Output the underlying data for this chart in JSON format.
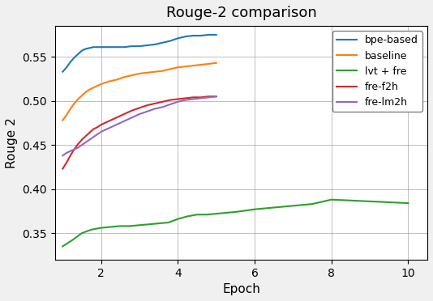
{
  "title": "Rouge-2 comparison",
  "xlabel": "Epoch",
  "ylabel": "Rouge 2",
  "series": {
    "bpe-based": {
      "color": "#1f77b4",
      "x": [
        1.0,
        1.1,
        1.2,
        1.3,
        1.4,
        1.5,
        1.6,
        1.7,
        1.8,
        1.9,
        2.0,
        2.2,
        2.4,
        2.6,
        2.8,
        3.0,
        3.2,
        3.4,
        3.6,
        3.8,
        4.0,
        4.2,
        4.4,
        4.6,
        4.8,
        5.0
      ],
      "y": [
        0.533,
        0.538,
        0.544,
        0.549,
        0.553,
        0.557,
        0.559,
        0.56,
        0.561,
        0.561,
        0.561,
        0.561,
        0.561,
        0.561,
        0.562,
        0.562,
        0.563,
        0.564,
        0.566,
        0.568,
        0.571,
        0.573,
        0.574,
        0.574,
        0.575,
        0.575
      ]
    },
    "baseline": {
      "color": "#ff7f0e",
      "x": [
        1.0,
        1.1,
        1.2,
        1.3,
        1.4,
        1.5,
        1.6,
        1.7,
        1.8,
        1.9,
        2.0,
        2.2,
        2.4,
        2.6,
        2.8,
        3.0,
        3.2,
        3.4,
        3.6,
        3.8,
        4.0,
        4.2,
        4.4,
        4.6,
        4.8,
        5.0
      ],
      "y": [
        0.478,
        0.484,
        0.491,
        0.497,
        0.502,
        0.506,
        0.51,
        0.513,
        0.515,
        0.517,
        0.519,
        0.522,
        0.524,
        0.527,
        0.529,
        0.531,
        0.532,
        0.533,
        0.534,
        0.536,
        0.538,
        0.539,
        0.54,
        0.541,
        0.542,
        0.543
      ]
    },
    "lvt + fre": {
      "color": "#2ca02c",
      "x": [
        1.0,
        1.25,
        1.5,
        1.75,
        2.0,
        2.25,
        2.5,
        2.75,
        3.0,
        3.25,
        3.5,
        3.75,
        4.0,
        4.25,
        4.5,
        4.75,
        5.0,
        5.5,
        6.0,
        6.5,
        7.0,
        7.5,
        8.0,
        8.5,
        9.0,
        9.5,
        10.0
      ],
      "y": [
        0.335,
        0.342,
        0.35,
        0.354,
        0.356,
        0.357,
        0.358,
        0.358,
        0.359,
        0.36,
        0.361,
        0.362,
        0.366,
        0.369,
        0.371,
        0.371,
        0.372,
        0.374,
        0.377,
        0.379,
        0.381,
        0.383,
        0.388,
        0.387,
        0.386,
        0.385,
        0.384
      ]
    },
    "fre-f2h": {
      "color": "#d62728",
      "x": [
        1.0,
        1.1,
        1.2,
        1.3,
        1.4,
        1.5,
        1.6,
        1.7,
        1.8,
        1.9,
        2.0,
        2.2,
        2.4,
        2.6,
        2.8,
        3.0,
        3.2,
        3.4,
        3.6,
        3.8,
        4.0,
        4.2,
        4.4,
        4.6,
        4.8,
        5.0
      ],
      "y": [
        0.423,
        0.43,
        0.438,
        0.445,
        0.451,
        0.456,
        0.46,
        0.464,
        0.468,
        0.47,
        0.473,
        0.477,
        0.481,
        0.485,
        0.489,
        0.492,
        0.495,
        0.497,
        0.499,
        0.501,
        0.502,
        0.503,
        0.504,
        0.504,
        0.505,
        0.505
      ]
    },
    "fre-lm2h": {
      "color": "#9467bd",
      "x": [
        1.0,
        1.1,
        1.2,
        1.3,
        1.4,
        1.5,
        1.6,
        1.7,
        1.8,
        1.9,
        2.0,
        2.2,
        2.4,
        2.6,
        2.8,
        3.0,
        3.2,
        3.4,
        3.6,
        3.8,
        4.0,
        4.2,
        4.4,
        4.6,
        4.8,
        5.0
      ],
      "y": [
        0.438,
        0.441,
        0.443,
        0.445,
        0.447,
        0.45,
        0.453,
        0.456,
        0.459,
        0.462,
        0.465,
        0.469,
        0.473,
        0.477,
        0.481,
        0.485,
        0.488,
        0.491,
        0.493,
        0.496,
        0.499,
        0.501,
        0.502,
        0.503,
        0.504,
        0.505
      ]
    }
  },
  "xlim": [
    0.8,
    10.5
  ],
  "ylim": [
    0.32,
    0.585
  ],
  "xticks": [
    2,
    4,
    6,
    8,
    10
  ],
  "yticks": [
    0.35,
    0.4,
    0.45,
    0.5,
    0.55
  ],
  "grid": true,
  "legend_loc": "upper right",
  "figsize": [
    5.34,
    3.72
  ],
  "dpi": 100,
  "bg_color": "#f0f0f0",
  "plot_bg_color": "#ffffff"
}
